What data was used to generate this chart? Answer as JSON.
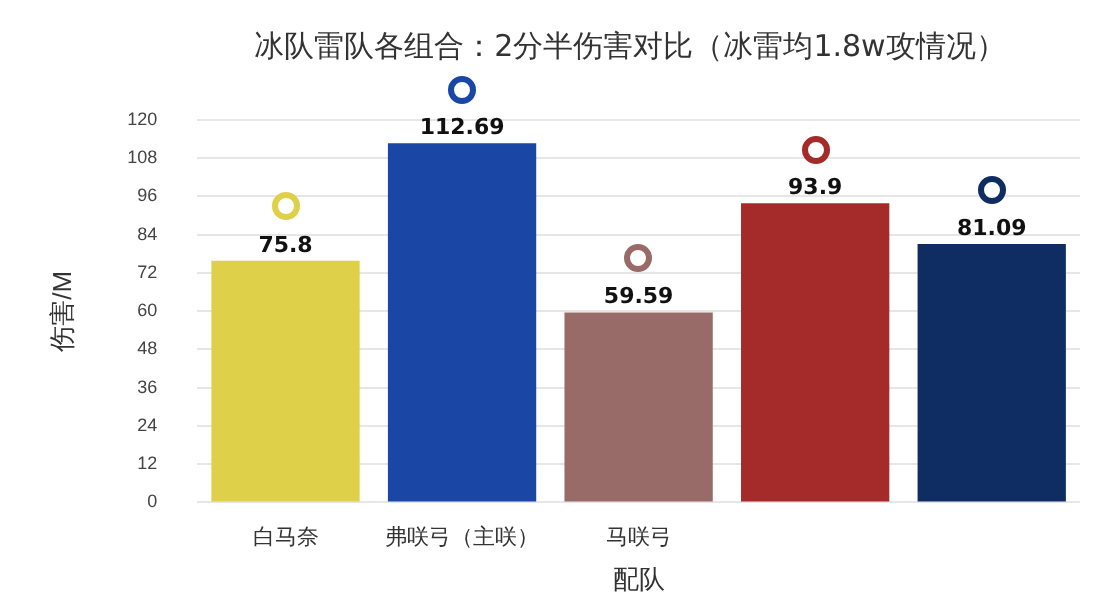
{
  "chart_data": {
    "type": "bar",
    "title": "冰队雷队各组合：2分半伤害对比（冰雷均1.8w攻情况）",
    "xlabel": "配队",
    "ylabel": "伤害/M",
    "categories": [
      "白马奈",
      "弗咲弓（主咲）",
      "马咲弓",
      null,
      null
    ],
    "values": [
      75.8,
      112.69,
      59.59,
      93.9,
      81.09
    ],
    "colors": [
      "#dfd04a",
      "#1a47a6",
      "#986a68",
      "#a52a2a",
      "#0f2d63"
    ],
    "ylim": [
      0,
      120
    ],
    "yticks": [
      0,
      12,
      24,
      36,
      48,
      60,
      72,
      84,
      96,
      108,
      120
    ],
    "grid": "y",
    "data_labels": true,
    "legend": false
  }
}
